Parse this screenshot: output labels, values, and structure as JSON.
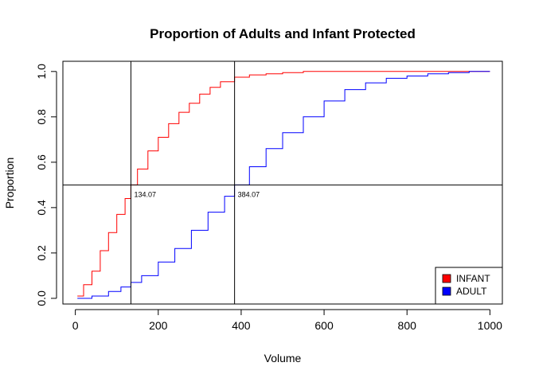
{
  "chart_data": {
    "type": "line",
    "title": "Proportion of Adults and Infant Protected",
    "xlabel": "Volume",
    "ylabel": "Proportion",
    "xlim": [
      -30,
      1030
    ],
    "ylim": [
      -0.025,
      1.045
    ],
    "xticks": [
      0,
      200,
      400,
      600,
      800,
      1000
    ],
    "yticks": [
      0.0,
      0.2,
      0.4,
      0.6,
      0.8,
      1.0
    ],
    "xtick_labels": [
      "0",
      "200",
      "400",
      "600",
      "800",
      "1000"
    ],
    "ytick_labels": [
      "0.0",
      "0.2",
      "0.4",
      "0.6",
      "0.8",
      "1.0"
    ],
    "grid": false,
    "legend_position": "bottom-right",
    "series": [
      {
        "name": "INFANT",
        "color": "#ff0000",
        "x": [
          5,
          20,
          40,
          60,
          80,
          100,
          120,
          134.07,
          150,
          175,
          200,
          225,
          250,
          275,
          300,
          325,
          350,
          384.07,
          420,
          460,
          500,
          550,
          600,
          700,
          800,
          1000
        ],
        "y": [
          0.01,
          0.06,
          0.12,
          0.21,
          0.29,
          0.37,
          0.44,
          0.5,
          0.57,
          0.65,
          0.71,
          0.77,
          0.82,
          0.86,
          0.9,
          0.93,
          0.955,
          0.975,
          0.985,
          0.99,
          0.995,
          1.0,
          1.0,
          1.0,
          1.0,
          1.0
        ]
      },
      {
        "name": "ADULT",
        "color": "#0000ff",
        "x": [
          5,
          40,
          80,
          110,
          134.07,
          160,
          200,
          240,
          280,
          320,
          360,
          384.07,
          420,
          460,
          500,
          550,
          600,
          650,
          700,
          750,
          800,
          850,
          900,
          950,
          1000
        ],
        "y": [
          0.0,
          0.01,
          0.03,
          0.05,
          0.07,
          0.1,
          0.16,
          0.22,
          0.3,
          0.38,
          0.45,
          0.5,
          0.58,
          0.66,
          0.73,
          0.8,
          0.87,
          0.92,
          0.95,
          0.97,
          0.98,
          0.99,
          0.995,
          1.0,
          1.0
        ]
      }
    ],
    "reference_lines": {
      "horizontal": [
        0.5
      ],
      "vertical": [
        134.07,
        384.07
      ]
    },
    "annotations": [
      {
        "x": 134.07,
        "y": 0.5,
        "text": "134.07"
      },
      {
        "x": 384.07,
        "y": 0.5,
        "text": "384.07"
      }
    ]
  }
}
